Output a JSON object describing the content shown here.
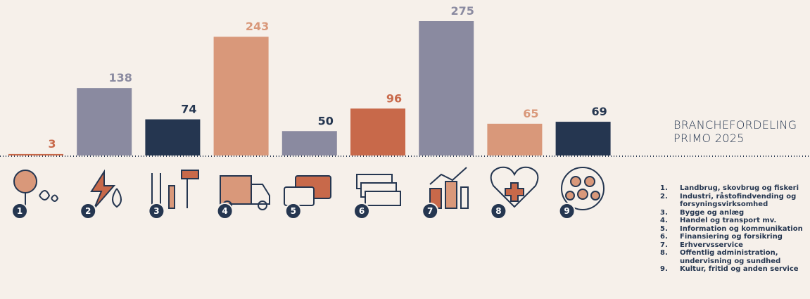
{
  "chart_data": {
    "type": "bar",
    "title": "BRANCHEFORDELING PRIMO 2025",
    "categories": [
      "1",
      "2",
      "3",
      "4",
      "5",
      "6",
      "7",
      "8",
      "9"
    ],
    "values": [
      3,
      138,
      74,
      243,
      50,
      96,
      275,
      65,
      69
    ],
    "colors": [
      "#c8694a",
      "#8a8aa0",
      "#253650",
      "#d9987a",
      "#8a8aa0",
      "#c8694a",
      "#8a8aa0",
      "#d9987a",
      "#253650"
    ],
    "label_colors": [
      "#c8694a",
      "#8a8aa0",
      "#253650",
      "#d9987a",
      "#253650",
      "#c8694a",
      "#8a8aa0",
      "#d9987a",
      "#253650"
    ],
    "legend": [
      {
        "number": "1.",
        "label": "Landbrug, skovbrug og fiskeri"
      },
      {
        "number": "2.",
        "label": "Industri, råstofindvending og forsyningsvirksomhed"
      },
      {
        "number": "3.",
        "label": "Bygge og anlæg"
      },
      {
        "number": "4.",
        "label": "Handel og transport mv."
      },
      {
        "number": "5.",
        "label": "Information og kommunikation"
      },
      {
        "number": "6.",
        "label": "Finansiering og forsikring"
      },
      {
        "number": "7.",
        "label": "Erhvervsservice"
      },
      {
        "number": "8.",
        "label": "Offentlig administration, undervisning og sundhed"
      },
      {
        "number": "9.",
        "label": "Kultur, fritid og anden service"
      }
    ]
  }
}
